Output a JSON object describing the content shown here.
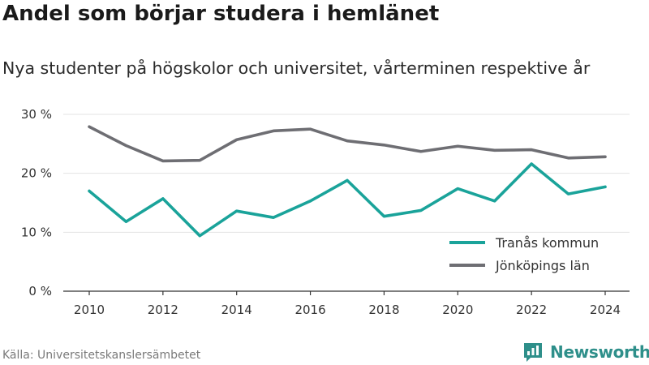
{
  "header": {
    "title": "Andel som börjar studera i hemlänet",
    "subtitle": "Nya studenter på högskolor och universitet, vårterminen respektive år"
  },
  "footer": {
    "source": "Källa: Universitetskanslersämbetet",
    "brand": "Newsworthy"
  },
  "chart_data": {
    "type": "line",
    "title": "Andel som börjar studera i hemlänet",
    "subtitle": "Nya studenter på högskolor och universitet, vårterminen respektive år",
    "x": [
      2010,
      2011,
      2012,
      2013,
      2014,
      2015,
      2016,
      2017,
      2018,
      2019,
      2020,
      2021,
      2022,
      2023,
      2024
    ],
    "x_ticks": [
      "2010",
      "2012",
      "2014",
      "2016",
      "2018",
      "2020",
      "2022",
      "2024"
    ],
    "y_ticks": [
      "0 %",
      "10 %",
      "20 %",
      "30 %"
    ],
    "ylim": [
      0,
      30
    ],
    "grid": true,
    "legend_position": "bottom-right",
    "series": [
      {
        "name": "Tranås kommun",
        "color": "#1aa39a",
        "values": [
          17.0,
          11.8,
          15.7,
          9.4,
          13.6,
          12.5,
          15.3,
          18.8,
          12.7,
          13.7,
          17.4,
          15.3,
          21.6,
          16.5,
          17.7
        ]
      },
      {
        "name": "Jönköpings län",
        "color": "#6e6e73",
        "values": [
          27.9,
          24.7,
          22.1,
          22.2,
          25.7,
          27.2,
          27.5,
          25.5,
          24.8,
          23.7,
          24.6,
          23.9,
          24.0,
          22.6,
          22.8
        ]
      }
    ]
  }
}
